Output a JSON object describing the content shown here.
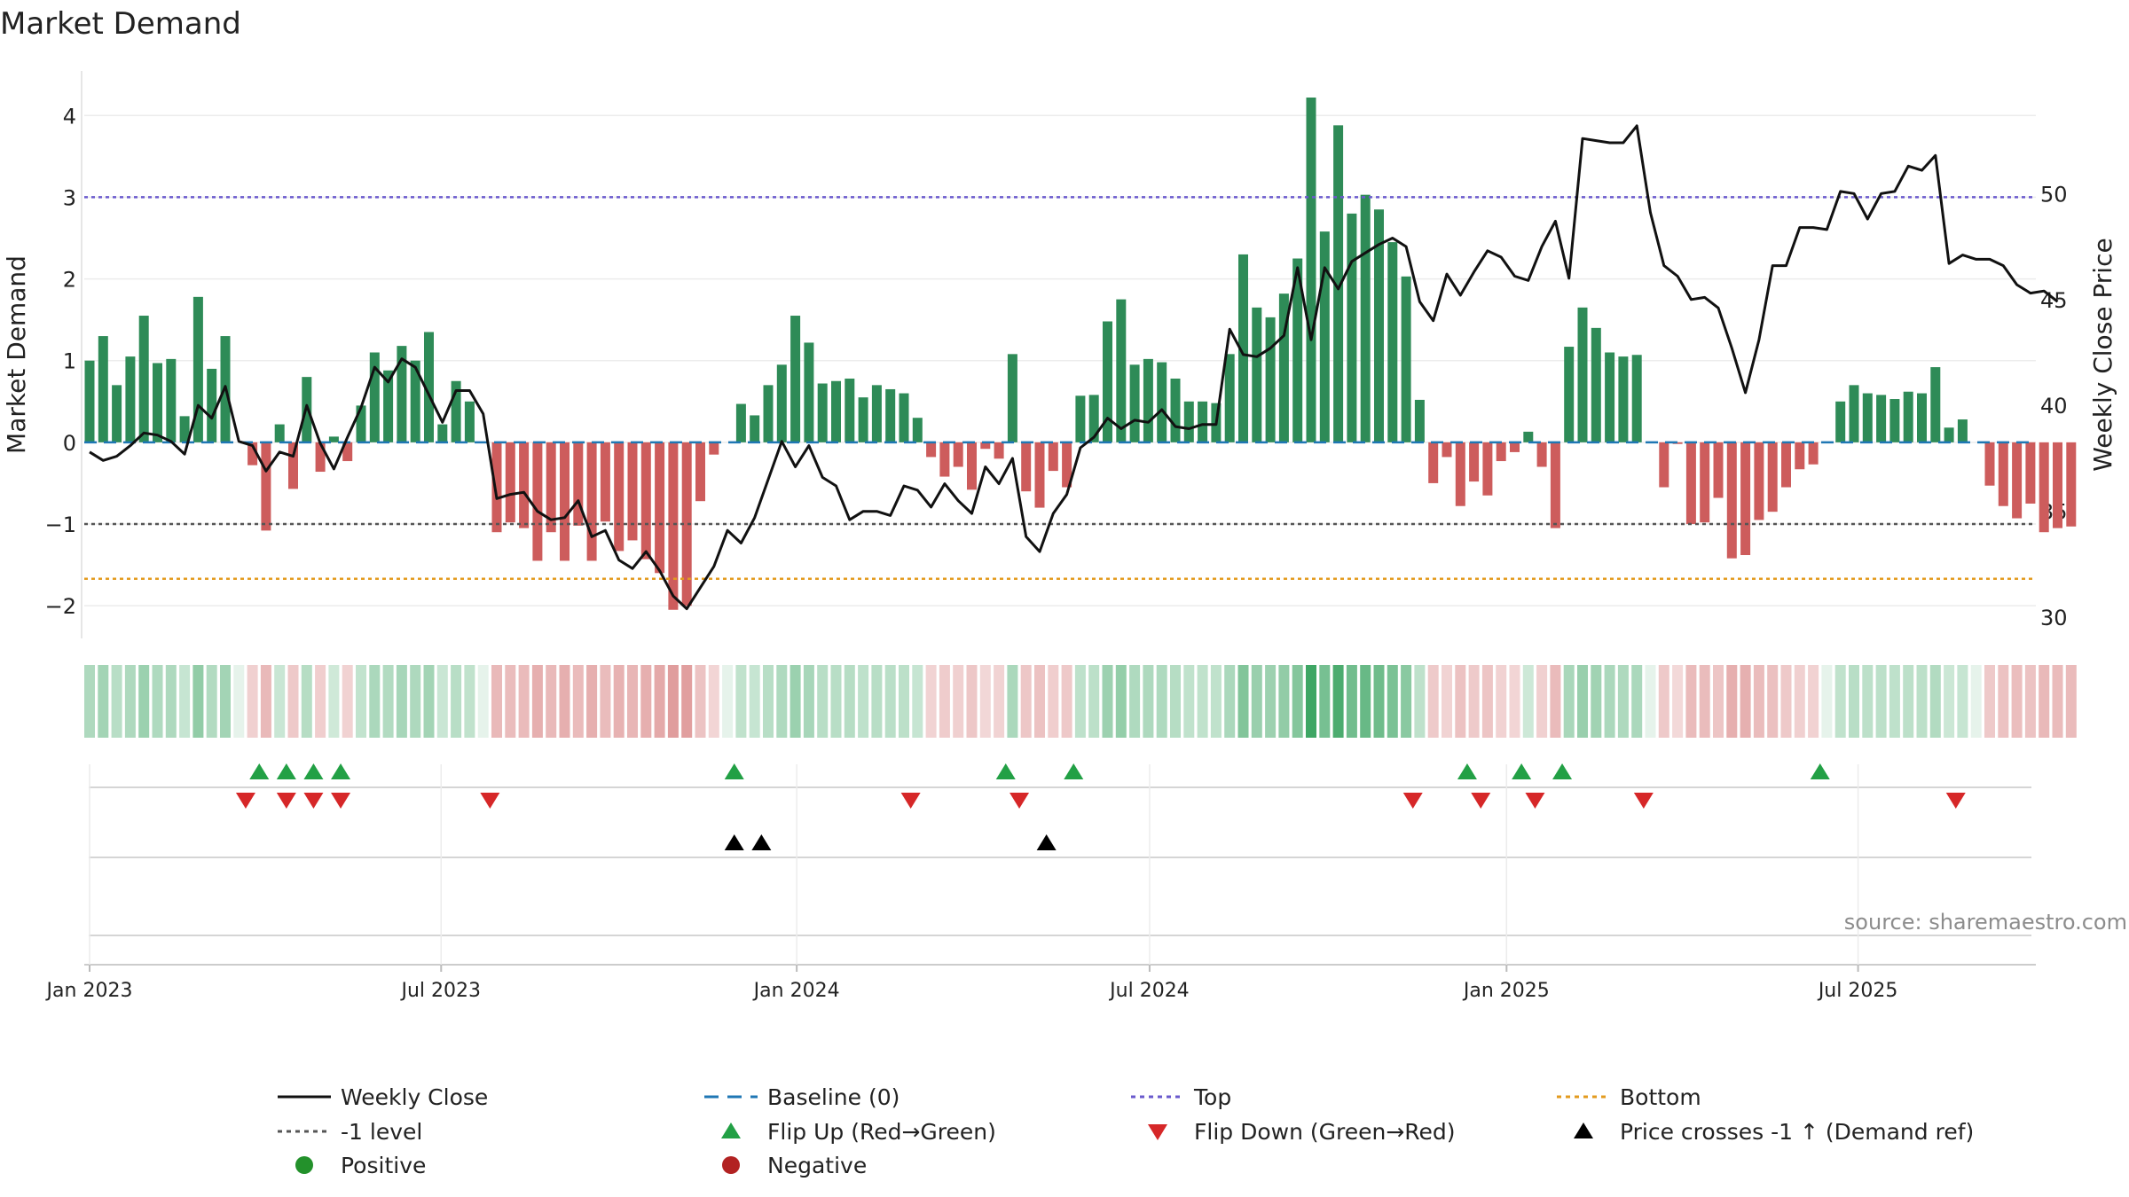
{
  "chart_data": {
    "type": "bar",
    "title": "Market Demand",
    "ylabel": "Market Demand",
    "ylabel_right": "Weekly Close Price",
    "source": "source: sharemaestro.com",
    "ylim": [
      -2.4,
      4.6
    ],
    "ylim_right": [
      29,
      56
    ],
    "yticks": [
      -2,
      -1,
      0,
      1,
      2,
      3,
      4
    ],
    "yticks_labels": [
      "−2",
      "−1",
      "0",
      "1",
      "2",
      "3",
      "4"
    ],
    "yticks_right": [
      30,
      35,
      40,
      45,
      50
    ],
    "top_level": 3.0,
    "bottom_level": -1.67,
    "minus_one_level": -1.0,
    "x_start": "2023-01-02",
    "x_tick_labels": [
      {
        "label": "Jan 2023",
        "week": 0
      },
      {
        "label": "Jul 2023",
        "week": 25.9
      },
      {
        "label": "Jan 2024",
        "week": 52.1
      },
      {
        "label": "Jul 2024",
        "week": 78.1
      },
      {
        "label": "Jan 2025",
        "week": 104.4
      },
      {
        "label": "Jul 2025",
        "week": 130.3
      }
    ],
    "demand": [
      1.0,
      1.3,
      0.7,
      1.05,
      1.55,
      0.97,
      1.02,
      0.32,
      1.78,
      0.9,
      1.3,
      0.0,
      -0.28,
      -1.08,
      0.22,
      -0.57,
      0.8,
      -0.36,
      0.07,
      -0.23,
      0.45,
      1.1,
      0.88,
      1.18,
      1.0,
      1.35,
      0.22,
      0.75,
      0.5,
      0.0,
      -1.1,
      -0.98,
      -1.05,
      -1.45,
      -1.1,
      -1.45,
      -1.02,
      -1.45,
      -0.97,
      -1.33,
      -1.2,
      -1.43,
      -1.6,
      -2.05,
      -2.0,
      -0.72,
      -0.15,
      0.0,
      0.47,
      0.33,
      0.7,
      0.95,
      1.55,
      1.22,
      0.72,
      0.75,
      0.78,
      0.55,
      0.7,
      0.65,
      0.6,
      0.3,
      -0.18,
      -0.42,
      -0.3,
      -0.58,
      -0.08,
      -0.2,
      1.08,
      -0.6,
      -0.8,
      -0.35,
      -0.55,
      0.57,
      0.58,
      1.48,
      1.75,
      0.95,
      1.02,
      0.98,
      0.78,
      0.5,
      0.5,
      0.48,
      1.08,
      2.3,
      1.65,
      1.53,
      1.82,
      2.25,
      4.22,
      2.58,
      3.88,
      2.8,
      3.03,
      2.85,
      2.45,
      2.03,
      0.52,
      -0.5,
      -0.18,
      -0.78,
      -0.48,
      -0.65,
      -0.23,
      -0.12,
      0.13,
      -0.3,
      -1.05,
      1.17,
      1.65,
      1.4,
      1.1,
      1.05,
      1.07,
      0.0,
      -0.55,
      -0.02,
      -1.0,
      -0.98,
      -0.68,
      -1.42,
      -1.38,
      -0.95,
      -0.85,
      -0.55,
      -0.33,
      -0.27,
      0.0,
      0.5,
      0.7,
      0.6,
      0.58,
      0.53,
      0.62,
      0.6,
      0.92,
      0.18,
      0.28,
      0.0,
      -0.53,
      -0.78,
      -0.93,
      -0.75,
      -1.1,
      -1.05,
      -1.03
    ],
    "weekly_close": [
      37.8,
      37.4,
      37.6,
      38.1,
      38.7,
      38.6,
      38.3,
      37.7,
      40.0,
      39.4,
      40.9,
      38.3,
      38.1,
      36.9,
      37.8,
      37.6,
      40.0,
      38.2,
      37.0,
      38.5,
      39.9,
      41.8,
      41.1,
      42.2,
      41.8,
      40.5,
      39.2,
      40.7,
      40.7,
      39.6,
      35.6,
      35.8,
      35.9,
      35.0,
      34.6,
      34.7,
      35.5,
      33.8,
      34.1,
      32.7,
      32.3,
      33.1,
      32.2,
      31.0,
      30.4,
      31.4,
      32.4,
      34.1,
      33.5,
      34.7,
      36.5,
      38.3,
      37.1,
      38.1,
      36.6,
      36.2,
      34.6,
      35.0,
      35.0,
      34.8,
      36.2,
      36.0,
      35.2,
      36.3,
      35.5,
      34.9,
      37.1,
      36.3,
      37.5,
      33.8,
      33.1,
      34.9,
      35.8,
      38.0,
      38.5,
      39.4,
      38.9,
      39.3,
      39.2,
      39.8,
      39.0,
      38.9,
      39.1,
      39.1,
      43.6,
      42.4,
      42.3,
      42.7,
      43.3,
      46.5,
      43.1,
      46.5,
      45.5,
      46.8,
      47.2,
      47.6,
      47.9,
      47.5,
      44.9,
      44.0,
      46.2,
      45.2,
      46.3,
      47.3,
      47.0,
      46.1,
      45.9,
      47.5,
      48.7,
      46.0,
      52.6,
      52.5,
      52.4,
      52.4,
      53.2,
      49.1,
      46.6,
      46.1,
      45.0,
      45.1,
      44.6,
      42.7,
      40.6,
      43.1,
      46.6,
      46.6,
      48.4,
      48.4,
      48.3,
      50.1,
      50.0,
      48.8,
      50.0,
      50.1,
      51.3,
      51.1,
      51.8,
      46.7,
      47.1,
      46.9,
      46.9,
      46.6,
      45.7,
      45.3,
      45.4,
      44.9
    ],
    "flip_up_weeks": [
      12.5,
      14.5,
      16.5,
      18.5,
      47.5,
      67.5,
      72.5,
      101.5,
      105.5,
      108.5,
      127.5
    ],
    "flip_down_weeks": [
      11.5,
      14.5,
      16.5,
      18.5,
      29.5,
      60.5,
      68.5,
      97.5,
      102.5,
      106.5,
      114.5,
      137.5
    ],
    "cross_weeks": [
      47.5,
      49.5,
      70.5
    ],
    "colors": {
      "positive": "#2e8b57",
      "negative": "#cd5c5c",
      "price_line": "#111111",
      "baseline": "#1f77b4",
      "top": "#6a5acd",
      "bottom": "#e39b1f",
      "minus_one": "#555555",
      "flip_up": "#22a045",
      "flip_down": "#d62728",
      "cross": "#000000",
      "legend_positive": "#23912b",
      "legend_negative": "#b22222"
    },
    "legend": [
      {
        "label": "Weekly Close",
        "marker": "line",
        "color": "#111111"
      },
      {
        "label": "Baseline (0)",
        "marker": "dashed",
        "color": "#1f77b4"
      },
      {
        "label": "Top",
        "marker": "dotted",
        "color": "#6a5acd"
      },
      {
        "label": "Bottom",
        "marker": "dotted",
        "color": "#e39b1f"
      },
      {
        "label": "-1 level",
        "marker": "dotted",
        "color": "#555555"
      },
      {
        "label": "Flip Up (Red→Green)",
        "marker": "tri-up",
        "color": "#22a045"
      },
      {
        "label": "Flip Down (Green→Red)",
        "marker": "tri-down",
        "color": "#d62728"
      },
      {
        "label": "Price crosses -1 ↑ (Demand ref)",
        "marker": "tri-up",
        "color": "#000000"
      },
      {
        "label": "Positive",
        "marker": "circle",
        "color": "#23912b"
      },
      {
        "label": "Negative",
        "marker": "circle",
        "color": "#b22222"
      }
    ]
  }
}
